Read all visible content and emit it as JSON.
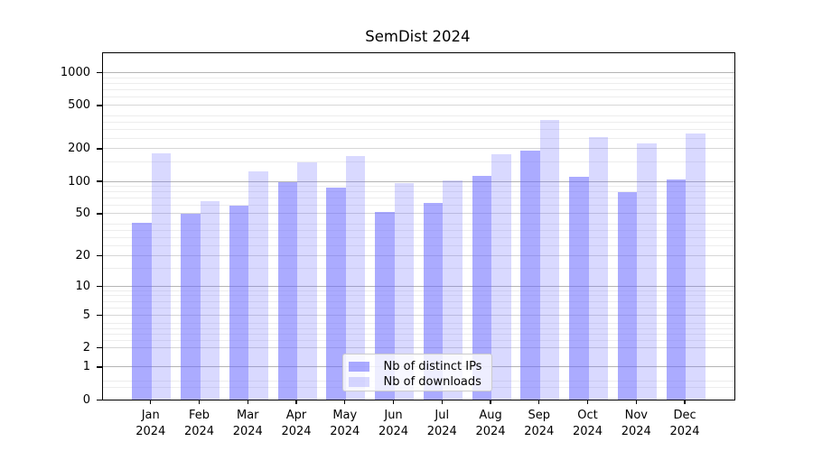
{
  "chart_data": {
    "type": "bar",
    "title": "SemDist 2024",
    "categories": [
      [
        "Jan",
        "2024"
      ],
      [
        "Feb",
        "2024"
      ],
      [
        "Mar",
        "2024"
      ],
      [
        "Apr",
        "2024"
      ],
      [
        "May",
        "2024"
      ],
      [
        "Jun",
        "2024"
      ],
      [
        "Jul",
        "2024"
      ],
      [
        "Aug",
        "2024"
      ],
      [
        "Sep",
        "2024"
      ],
      [
        "Oct",
        "2024"
      ],
      [
        "Nov",
        "2024"
      ],
      [
        "Dec",
        "2024"
      ]
    ],
    "series": [
      {
        "name": "Nb of distinct IPs",
        "color": "rgba(102,102,255,0.55)",
        "values": [
          41,
          50,
          59,
          98,
          88,
          52,
          63,
          112,
          193,
          110,
          79,
          105
        ]
      },
      {
        "name": "Nb of downloads",
        "color": "rgba(102,102,255,0.25)",
        "values": [
          180,
          65,
          124,
          150,
          170,
          96,
          102,
          178,
          370,
          256,
          222,
          275
        ]
      }
    ],
    "yscale": "log1p",
    "ylim": [
      0,
      1500
    ],
    "yticks": [
      0,
      1,
      2,
      5,
      10,
      20,
      50,
      100,
      200,
      500,
      1000
    ],
    "decade_ticks": [
      1,
      10,
      100,
      1000
    ],
    "minor_gridlines": [
      0.3,
      0.5,
      2.5,
      3,
      3.5,
      4,
      6,
      7,
      8,
      9,
      15,
      25,
      30,
      35,
      40,
      60,
      70,
      80,
      90,
      150,
      250,
      300,
      350,
      400,
      600,
      700,
      800,
      900
    ],
    "grid": true,
    "legend": {
      "position": "lower center",
      "entries": [
        "Nb of distinct IPs",
        "Nb of downloads"
      ]
    },
    "xlabel": "",
    "ylabel": ""
  },
  "colors": {
    "spine": "#000000",
    "decade_grid": "#b4b4b4",
    "major_grid": "#d6d6d6",
    "minor_grid": "#ededed",
    "legend_border": "#cccccc",
    "legend_bg": "rgba(255,255,255,0.8)",
    "text": "#000000"
  }
}
